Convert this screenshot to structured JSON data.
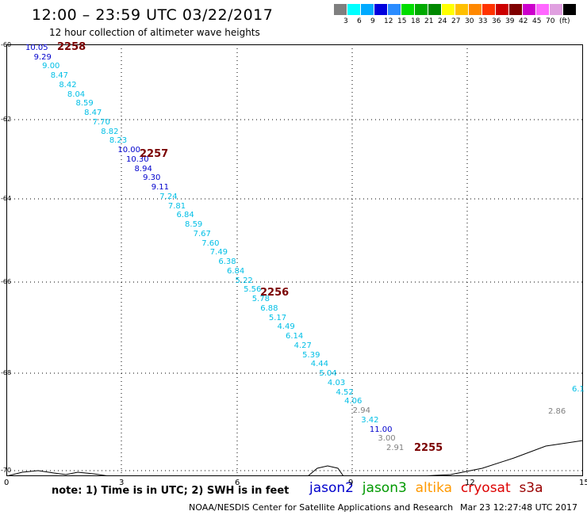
{
  "header": {
    "title": "12:00 – 23:59 UTC 03/22/2017",
    "subtitle": "12 hour collection of altimeter wave heights"
  },
  "colorbar": {
    "colors": [
      "#7f7f7f",
      "#00ffff",
      "#00aaff",
      "#0000dd",
      "#2b8cff",
      "#00dd00",
      "#00aa00",
      "#008800",
      "#ffff00",
      "#ffbf00",
      "#ff8800",
      "#ff3300",
      "#cc0000",
      "#7f0000",
      "#cc00cc",
      "#ff66ff",
      "#e0a0e0",
      "#000000"
    ],
    "tick_labels": [
      "3",
      "6",
      "9",
      "12",
      "15",
      "18",
      "21",
      "24",
      "27",
      "30",
      "33",
      "36",
      "39",
      "42",
      "45",
      "70",
      "(ft)"
    ]
  },
  "axes": {
    "x_ticks": [
      "0",
      "3",
      "6",
      "9",
      "12",
      "15"
    ],
    "y_ticks": [
      "-60",
      "-62",
      "-64",
      "-66",
      "-68",
      "-70"
    ]
  },
  "track": {
    "values": [
      {
        "v": "10.05",
        "c": "#0000cc"
      },
      {
        "v": "9.29",
        "c": "#0000cc"
      },
      {
        "v": "9.00",
        "c": "#00bfe6"
      },
      {
        "v": "8.47",
        "c": "#00bfe6"
      },
      {
        "v": "8.42",
        "c": "#00bfe6"
      },
      {
        "v": "8.04",
        "c": "#00bfe6"
      },
      {
        "v": "8.59",
        "c": "#00bfe6"
      },
      {
        "v": "8.47",
        "c": "#00bfe6"
      },
      {
        "v": "7.70",
        "c": "#00bfe6"
      },
      {
        "v": "8.82",
        "c": "#00bfe6"
      },
      {
        "v": "8.23",
        "c": "#00bfe6"
      },
      {
        "v": "10.00",
        "c": "#0000cc"
      },
      {
        "v": "10.30",
        "c": "#0000cc"
      },
      {
        "v": "8.94",
        "c": "#0000cc"
      },
      {
        "v": "9.30",
        "c": "#0000cc"
      },
      {
        "v": "9.11",
        "c": "#0000cc"
      },
      {
        "v": "7.24",
        "c": "#00bfe6"
      },
      {
        "v": "7.81",
        "c": "#00bfe6"
      },
      {
        "v": "6.84",
        "c": "#00bfe6"
      },
      {
        "v": "8.59",
        "c": "#00bfe6"
      },
      {
        "v": "7.67",
        "c": "#00bfe6"
      },
      {
        "v": "7.60",
        "c": "#00bfe6"
      },
      {
        "v": "7.49",
        "c": "#00bfe6"
      },
      {
        "v": "6.38",
        "c": "#00bfe6"
      },
      {
        "v": "6.84",
        "c": "#00bfe6"
      },
      {
        "v": "5.22",
        "c": "#00bfe6"
      },
      {
        "v": "5.56",
        "c": "#00bfe6"
      },
      {
        "v": "5.78",
        "c": "#00bfe6"
      },
      {
        "v": "6.88",
        "c": "#00bfe6"
      },
      {
        "v": "5.17",
        "c": "#00bfe6"
      },
      {
        "v": "4.49",
        "c": "#00bfe6"
      },
      {
        "v": "6.14",
        "c": "#00bfe6"
      },
      {
        "v": "4.27",
        "c": "#00bfe6"
      },
      {
        "v": "5.39",
        "c": "#00bfe6"
      },
      {
        "v": "4.44",
        "c": "#00bfe6"
      },
      {
        "v": "5.04",
        "c": "#00bfe6"
      },
      {
        "v": "4.03",
        "c": "#00bfe6"
      },
      {
        "v": "4.52",
        "c": "#00bfe6"
      },
      {
        "v": "4.06",
        "c": "#00bfe6"
      },
      {
        "v": "2.94",
        "c": "#7f7f7f"
      },
      {
        "v": "3.42",
        "c": "#00bfe6"
      },
      {
        "v": "11.00",
        "c": "#0000cc"
      },
      {
        "v": "3.00",
        "c": "#7f7f7f"
      },
      {
        "v": "2.91",
        "c": "#7f7f7f"
      }
    ],
    "pass_labels": [
      "2258",
      "2257",
      "2256",
      "2255"
    ],
    "extra_labels": [
      "2.86",
      "6.1"
    ]
  },
  "legend": {
    "note": "note: 1) Time is in UTC; 2) SWH is in feet",
    "satellites": [
      {
        "name": "jason2",
        "color": "#0000cc"
      },
      {
        "name": "jason3",
        "color": "#009900"
      },
      {
        "name": "altika",
        "color": "#ff9900"
      },
      {
        "name": "cryosat",
        "color": "#dd0000"
      },
      {
        "name": "s3a",
        "color": "#990000"
      }
    ]
  },
  "footer": {
    "org": "NOAA/NESDIS Center for Satellite Applications and Research",
    "timestamp": "Mar 23 12:27:48 UTC 2017"
  }
}
